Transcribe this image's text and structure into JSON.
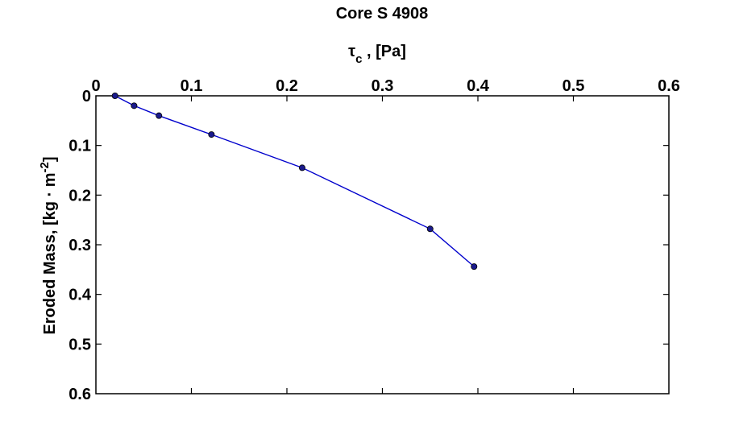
{
  "chart_data": {
    "type": "line",
    "title": "Core S 4908",
    "xlabel_main": "τ",
    "xlabel_sub": "c",
    "xlabel_rest": " , [Pa]",
    "ylabel_main": "Eroded Mass, [kg · m",
    "ylabel_sup": "-2",
    "ylabel_end": "]",
    "x_axis_position": "top",
    "y_axis_reversed": true,
    "xlim": [
      0,
      0.6
    ],
    "ylim": [
      0,
      0.6
    ],
    "x_ticks": [
      0,
      0.1,
      0.2,
      0.3,
      0.4,
      0.5,
      0.6
    ],
    "x_tick_labels": [
      "0",
      "0.1",
      "0.2",
      "0.3",
      "0.4",
      "0.5",
      "0.6"
    ],
    "y_ticks": [
      0,
      0.1,
      0.2,
      0.3,
      0.4,
      0.5,
      0.6
    ],
    "y_tick_labels": [
      "0",
      "0.1",
      "0.2",
      "0.3",
      "0.4",
      "0.5",
      "0.6"
    ],
    "grid": false,
    "series": [
      {
        "color": "#0000cc",
        "marker": "circle",
        "x": [
          0.02,
          0.04,
          0.066,
          0.121,
          0.216,
          0.35,
          0.396
        ],
        "y": [
          0.0,
          0.02,
          0.04,
          0.078,
          0.145,
          0.268,
          0.344
        ]
      }
    ]
  }
}
